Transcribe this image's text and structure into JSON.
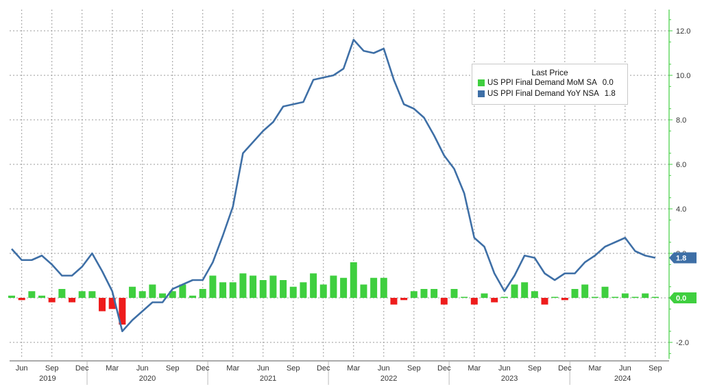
{
  "chart_data": {
    "type": "bar+line",
    "legend_title": "Last Price",
    "legend_position": "top-right",
    "grid": true,
    "y_axis_side": "right",
    "ylim": [
      -2.8,
      13.0
    ],
    "yticks": [
      "-2.0",
      "0.0",
      "2.0",
      "4.0",
      "6.0",
      "8.0",
      "10.0",
      "12.0"
    ],
    "x_month_ticks": [
      "Jun",
      "Sep",
      "Dec",
      "Mar",
      "Jun",
      "Sep",
      "Dec",
      "Mar",
      "Jun",
      "Sep",
      "Dec",
      "Mar",
      "Jun",
      "Sep",
      "Dec",
      "Mar",
      "Jun",
      "Sep",
      "Dec",
      "Mar",
      "Jun",
      "Sep"
    ],
    "x_year_labels": [
      "2019",
      "2020",
      "2021",
      "2022",
      "2023",
      "2024"
    ],
    "months": [
      "2019-05",
      "2019-06",
      "2019-07",
      "2019-08",
      "2019-09",
      "2019-10",
      "2019-11",
      "2019-12",
      "2020-01",
      "2020-02",
      "2020-03",
      "2020-04",
      "2020-05",
      "2020-06",
      "2020-07",
      "2020-08",
      "2020-09",
      "2020-10",
      "2020-11",
      "2020-12",
      "2021-01",
      "2021-02",
      "2021-03",
      "2021-04",
      "2021-05",
      "2021-06",
      "2021-07",
      "2021-08",
      "2021-09",
      "2021-10",
      "2021-11",
      "2021-12",
      "2022-01",
      "2022-02",
      "2022-03",
      "2022-04",
      "2022-05",
      "2022-06",
      "2022-07",
      "2022-08",
      "2022-09",
      "2022-10",
      "2022-11",
      "2022-12",
      "2023-01",
      "2023-02",
      "2023-03",
      "2023-04",
      "2023-05",
      "2023-06",
      "2023-07",
      "2023-08",
      "2023-09",
      "2023-10",
      "2023-11",
      "2023-12",
      "2024-01",
      "2024-02",
      "2024-03",
      "2024-04",
      "2024-05",
      "2024-06",
      "2024-07",
      "2024-08",
      "2024-09"
    ],
    "series": [
      {
        "name": "US PPI Final Demand MoM SA",
        "last_value": "0.0",
        "type": "bar",
        "color_pos": "#3fcf3f",
        "color_neg": "#ee1c1c",
        "values": [
          0.1,
          -0.1,
          0.3,
          0.1,
          -0.2,
          0.4,
          -0.2,
          0.3,
          0.3,
          -0.6,
          -0.5,
          -1.2,
          0.5,
          0.3,
          0.6,
          0.2,
          0.3,
          0.6,
          0.1,
          0.4,
          1.0,
          0.7,
          0.7,
          1.1,
          1.0,
          0.8,
          1.0,
          0.8,
          0.5,
          0.7,
          1.1,
          0.6,
          1.0,
          0.9,
          1.6,
          0.6,
          0.9,
          0.9,
          -0.3,
          -0.1,
          0.3,
          0.4,
          0.4,
          -0.3,
          0.4,
          0.0,
          -0.3,
          0.2,
          -0.2,
          0.0,
          0.6,
          0.7,
          0.3,
          -0.3,
          0.0,
          -0.1,
          0.4,
          0.6,
          0.0,
          0.5,
          0.0,
          0.2,
          0.0,
          0.2,
          0.0
        ]
      },
      {
        "name": "US PPI Final Demand YoY NSA",
        "last_value": "1.8",
        "type": "line",
        "color": "#3e6fa6",
        "values": [
          2.2,
          1.7,
          1.7,
          1.9,
          1.5,
          1.0,
          1.0,
          1.4,
          2.0,
          1.2,
          0.3,
          -1.5,
          -1.0,
          -0.6,
          -0.2,
          -0.2,
          0.4,
          0.6,
          0.8,
          0.8,
          1.6,
          2.8,
          4.1,
          6.5,
          7.0,
          7.5,
          7.9,
          8.6,
          8.7,
          8.8,
          9.8,
          9.9,
          10.0,
          10.3,
          11.6,
          11.1,
          11.0,
          11.2,
          9.8,
          8.7,
          8.5,
          8.1,
          7.3,
          6.4,
          5.8,
          4.7,
          2.7,
          2.3,
          1.1,
          0.3,
          1.0,
          1.9,
          1.8,
          1.1,
          0.8,
          1.1,
          1.1,
          1.6,
          1.9,
          2.3,
          2.5,
          2.7,
          2.1,
          1.9,
          1.8
        ]
      }
    ]
  }
}
